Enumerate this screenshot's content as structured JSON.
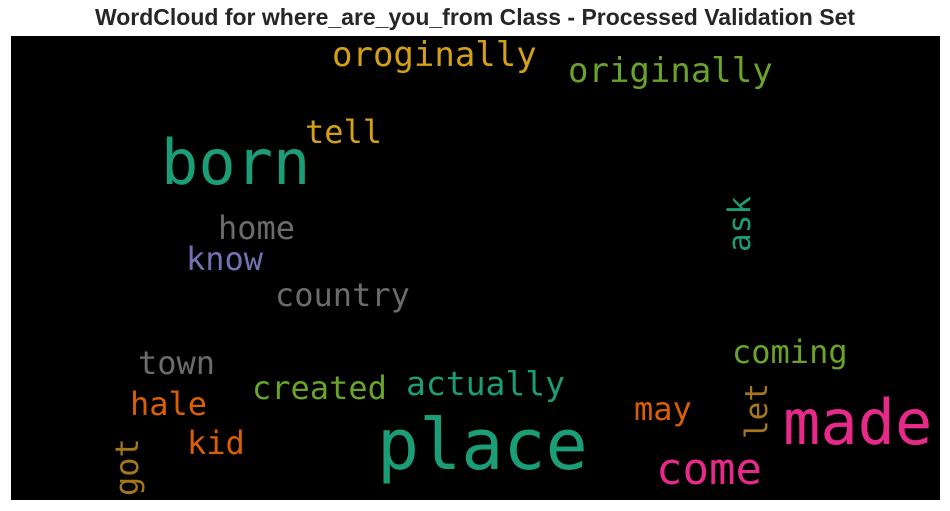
{
  "chart_data": {
    "type": "wordcloud",
    "title": "WordCloud for where_are_you_from Class - Processed Validation Set",
    "background": "#000000",
    "words": [
      {
        "text": "oroginally",
        "color": "#d4a017",
        "orientation": "horizontal"
      },
      {
        "text": "originally",
        "color": "#6aa32a",
        "orientation": "horizontal"
      },
      {
        "text": "tell",
        "color": "#d4a017",
        "orientation": "horizontal"
      },
      {
        "text": "born",
        "color": "#1b9e77",
        "orientation": "horizontal"
      },
      {
        "text": "home",
        "color": "#6b6b6b",
        "orientation": "horizontal"
      },
      {
        "text": "know",
        "color": "#7570b3",
        "orientation": "horizontal"
      },
      {
        "text": "ask",
        "color": "#1b9e77",
        "orientation": "vertical"
      },
      {
        "text": "country",
        "color": "#6b6b6b",
        "orientation": "horizontal"
      },
      {
        "text": "coming",
        "color": "#6aa32a",
        "orientation": "horizontal"
      },
      {
        "text": "town",
        "color": "#6b6b6b",
        "orientation": "horizontal"
      },
      {
        "text": "created",
        "color": "#6aa32a",
        "orientation": "horizontal"
      },
      {
        "text": "actually",
        "color": "#1b9e77",
        "orientation": "horizontal"
      },
      {
        "text": "hale",
        "color": "#d95f02",
        "orientation": "horizontal"
      },
      {
        "text": "may",
        "color": "#d95f02",
        "orientation": "horizontal"
      },
      {
        "text": "let",
        "color": "#a6761d",
        "orientation": "vertical"
      },
      {
        "text": "made",
        "color": "#e7298a",
        "orientation": "horizontal"
      },
      {
        "text": "place",
        "color": "#1b9e77",
        "orientation": "horizontal"
      },
      {
        "text": "kid",
        "color": "#d95f02",
        "orientation": "horizontal"
      },
      {
        "text": "got",
        "color": "#a6761d",
        "orientation": "vertical"
      },
      {
        "text": "come",
        "color": "#e7298a",
        "orientation": "horizontal"
      }
    ]
  }
}
